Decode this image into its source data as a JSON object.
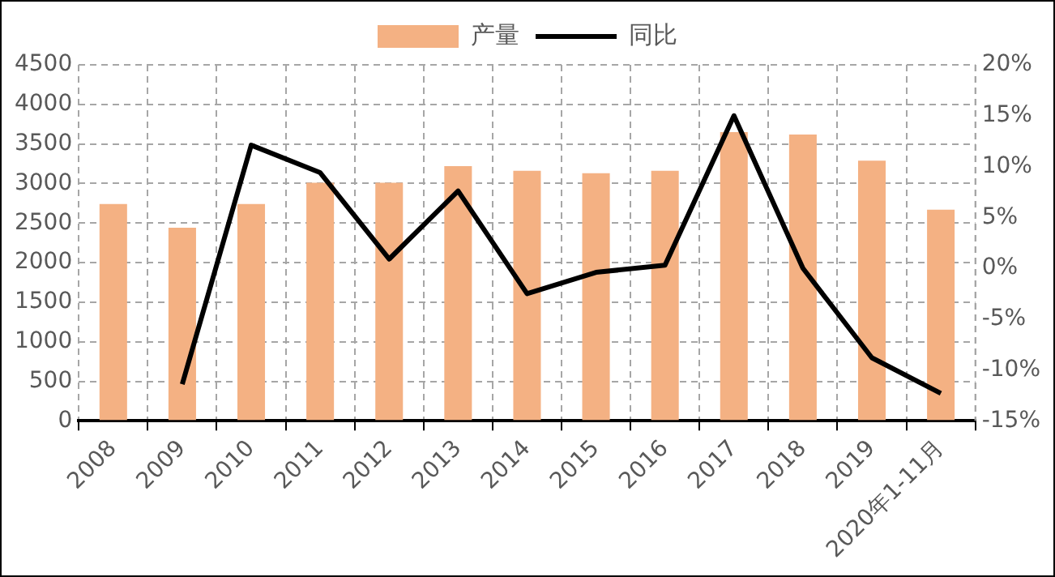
{
  "chart_data": {
    "type": "bar",
    "categories": [
      "2008",
      "2009",
      "2010",
      "2011",
      "2012",
      "2013",
      "2014",
      "2015",
      "2016",
      "2017",
      "2018",
      "2019",
      "2020年1-11月"
    ],
    "series": [
      {
        "name": "产量",
        "color": "#f4b183",
        "values": [
          2740,
          2440,
          2740,
          3010,
          3010,
          3220,
          3160,
          3130,
          3160,
          3650,
          3620,
          3290,
          2670
        ]
      },
      {
        "name": "同比",
        "type": "line",
        "axis": "y2",
        "color": "#000000",
        "values": [
          null,
          -11.4,
          12.1,
          9.4,
          0.9,
          7.6,
          -2.5,
          -0.4,
          0.3,
          15,
          0,
          -8.8,
          -12.3
        ]
      }
    ],
    "ylim": [
      0,
      4500
    ],
    "yticks": [
      0,
      500,
      1000,
      1500,
      2000,
      2500,
      3000,
      3500,
      4000,
      4500
    ],
    "y2lim": [
      -15,
      20
    ],
    "y2ticks": [
      {
        "value": -15,
        "label": "-15%"
      },
      {
        "value": -10,
        "label": "-10%"
      },
      {
        "value": -5,
        "label": "-5%"
      },
      {
        "value": 0,
        "label": "0%"
      },
      {
        "value": 5,
        "label": "5%"
      },
      {
        "value": 10,
        "label": "10%"
      },
      {
        "value": 15,
        "label": "15%"
      },
      {
        "value": 20,
        "label": "20%"
      }
    ],
    "grid": true,
    "legend": "top",
    "marker": "none"
  }
}
